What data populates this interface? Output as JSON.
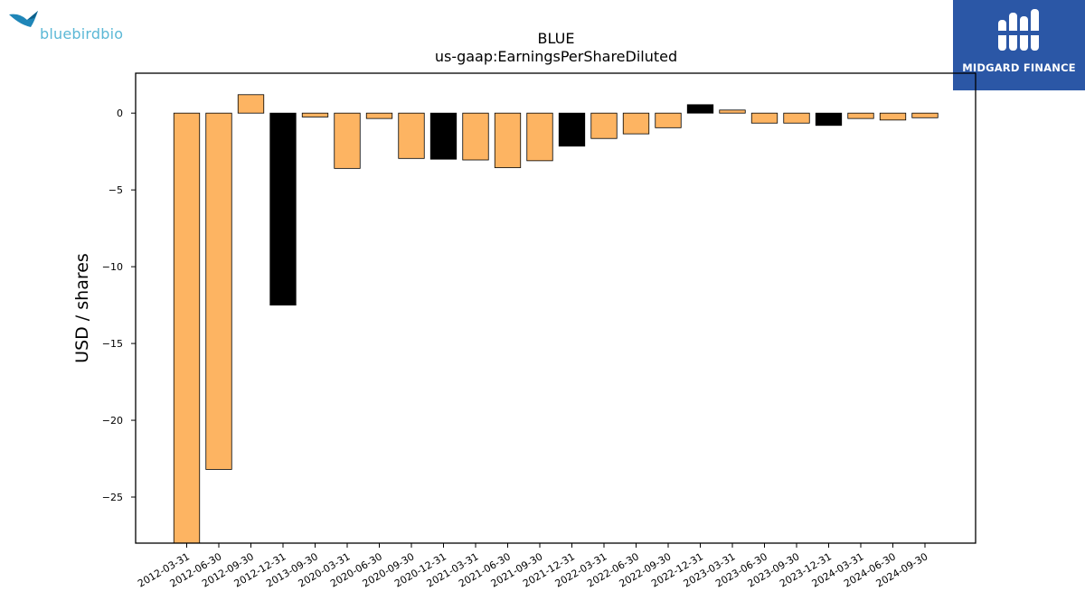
{
  "logos": {
    "left_text": "bluebirdbio",
    "right_text": "MIDGARD FINANCE"
  },
  "chart_data": {
    "type": "bar",
    "title": "BLUE",
    "subtitle": "us-gaap:EarningsPerShareDiluted",
    "xlabel": "",
    "ylabel": "USD / shares",
    "ylim": [
      -28,
      2.6
    ],
    "yticks": [
      0,
      -5,
      -10,
      -15,
      -20,
      -25
    ],
    "grid": false,
    "categories": [
      "2012-03-31",
      "2012-06-30",
      "2012-09-30",
      "2012-12-31",
      "2013-09-30",
      "2020-03-31",
      "2020-06-30",
      "2020-09-30",
      "2020-12-31",
      "2021-03-31",
      "2021-06-30",
      "2021-09-30",
      "2021-12-31",
      "2022-03-31",
      "2022-06-30",
      "2022-09-30",
      "2022-12-31",
      "2023-03-31",
      "2023-06-30",
      "2023-09-30",
      "2023-12-31",
      "2024-03-31",
      "2024-06-30",
      "2024-09-30"
    ],
    "values": [
      -28.5,
      -23.2,
      1.2,
      -12.5,
      -0.25,
      -3.6,
      -0.35,
      -2.95,
      -3.0,
      -3.05,
      -3.55,
      -3.1,
      -2.15,
      -1.65,
      -1.35,
      -0.95,
      0.55,
      0.2,
      -0.65,
      -0.65,
      -0.8,
      -0.35,
      -0.45,
      -0.3
    ],
    "bar_colors": [
      "#fdb462",
      "#fdb462",
      "#fdb462",
      "#000000",
      "#fdb462",
      "#fdb462",
      "#fdb462",
      "#fdb462",
      "#000000",
      "#fdb462",
      "#fdb462",
      "#fdb462",
      "#000000",
      "#fdb462",
      "#fdb462",
      "#fdb462",
      "#000000",
      "#fdb462",
      "#fdb462",
      "#fdb462",
      "#000000",
      "#fdb462",
      "#fdb462",
      "#fdb462"
    ],
    "colors": {
      "quarter": "#fdb462",
      "year_end": "#000000",
      "edge": "#000000"
    }
  }
}
